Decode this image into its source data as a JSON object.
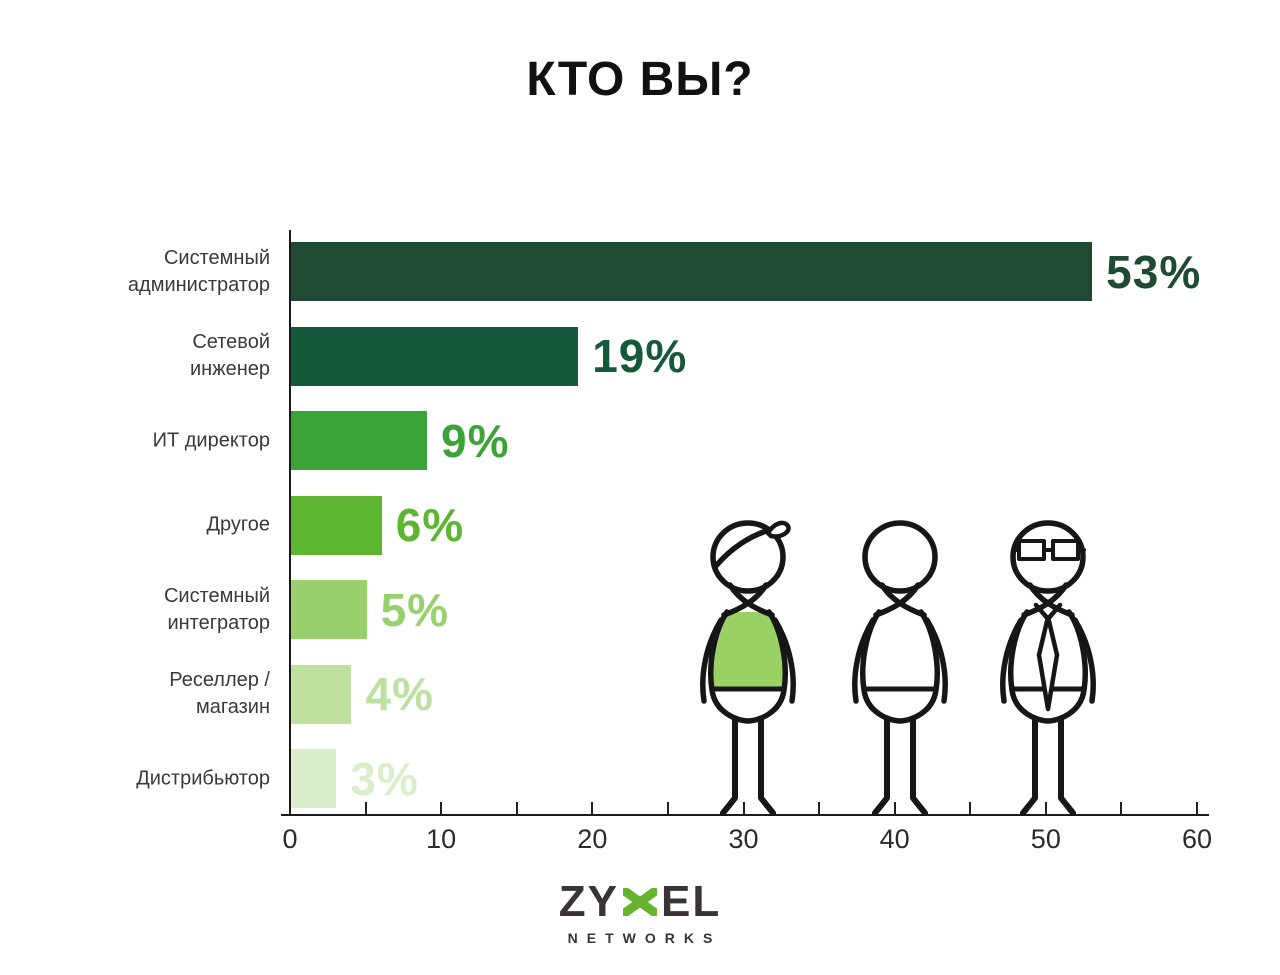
{
  "chart_data": {
    "type": "bar",
    "orientation": "horizontal",
    "title": "КТО ВЫ?",
    "categories": [
      "Системный администратор",
      "Сетевой инженер",
      "ИТ директор",
      "Другое",
      "Системный интегратор",
      "Реселлер / магазин",
      "Дистрибьютор"
    ],
    "category_lines": [
      [
        "Системный",
        "администратор"
      ],
      [
        "Сетевой",
        "инженер"
      ],
      [
        "ИТ директор"
      ],
      [
        "Другое"
      ],
      [
        "Системный",
        "интегратор"
      ],
      [
        "Реселлер /",
        "магазин"
      ],
      [
        "Дистрибьютор"
      ]
    ],
    "values": [
      53,
      19,
      9,
      6,
      5,
      4,
      3
    ],
    "value_labels": [
      "53%",
      "19%",
      "9%",
      "6%",
      "5%",
      "4%",
      "3%"
    ],
    "bar_colors": [
      "#1f4b33",
      "#14593a",
      "#3ca339",
      "#5db530",
      "#98d06e",
      "#bee0a1",
      "#dbeecb"
    ],
    "xlim": [
      0,
      60
    ],
    "x_tick_labels": [
      "0",
      "10",
      "20",
      "30",
      "40",
      "50",
      "60"
    ],
    "x_major_tick_step": 10,
    "x_minor_tick_step": 5,
    "grid": false,
    "legend": false,
    "xlabel": "",
    "ylabel": ""
  },
  "illustration": {
    "items": [
      {
        "name": "person-green-vest"
      },
      {
        "name": "person-plain"
      },
      {
        "name": "person-glasses-tie"
      }
    ],
    "vest_color": "#9ad164",
    "outline_color": "#161616"
  },
  "logo": {
    "brand_left": "ZY",
    "brand_right": "EL",
    "sub": "NETWORKS",
    "x_color": "#67b32e",
    "text_color": "#3b3434"
  },
  "colors": {
    "background": "#ffffff",
    "title": "#111111",
    "axis": "#1a1a1a",
    "category_label": "#3a3a3a",
    "tick_label": "#2b2b2b"
  }
}
